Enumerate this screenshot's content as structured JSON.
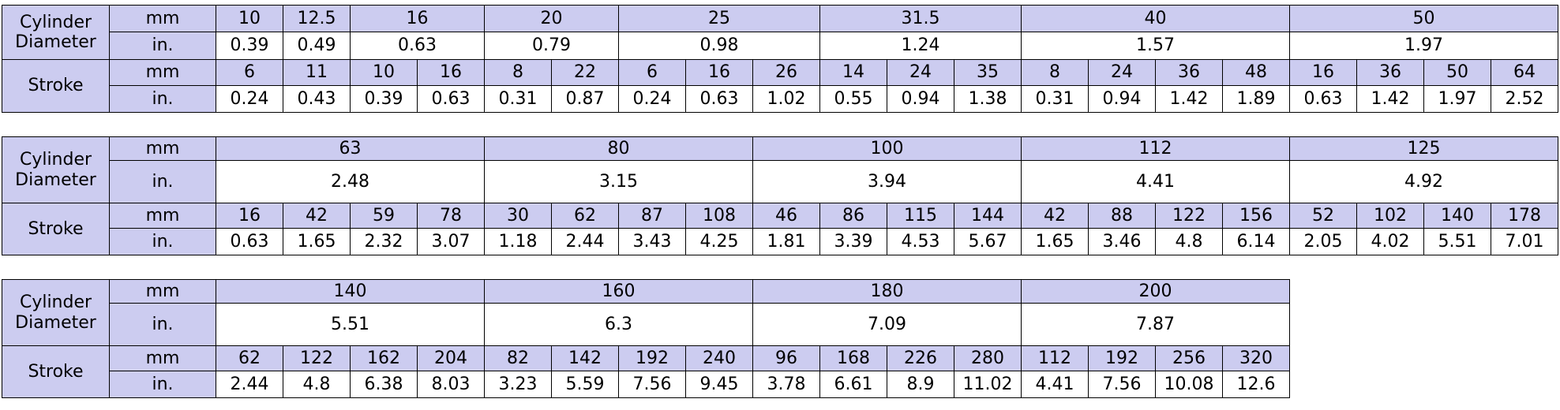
{
  "tables": [
    {
      "labels": {
        "cylinder_diameter": "Cylinder Diameter",
        "stroke": "Stroke",
        "mm_top": "mm",
        "in_top": "in.",
        "mm_bottom": "mm",
        "in_bottom": "in."
      },
      "cylinders": [
        {
          "mm": "10",
          "in": "0.39",
          "stroke_mm": [
            "6"
          ],
          "stroke_in": [
            "0.24"
          ]
        },
        {
          "mm": "12.5",
          "in": "0.49",
          "stroke_mm": [
            "11"
          ],
          "stroke_in": [
            "0.43"
          ]
        },
        {
          "mm": "16",
          "in": "0.63",
          "stroke_mm": [
            "10",
            "16"
          ],
          "stroke_in": [
            "0.39",
            "0.63"
          ]
        },
        {
          "mm": "20",
          "in": "0.79",
          "stroke_mm": [
            "8",
            "22"
          ],
          "stroke_in": [
            "0.31",
            "0.87"
          ]
        },
        {
          "mm": "25",
          "in": "0.98",
          "stroke_mm": [
            "6",
            "16",
            "26"
          ],
          "stroke_in": [
            "0.24",
            "0.63",
            "1.02"
          ]
        },
        {
          "mm": "31.5",
          "in": "1.24",
          "stroke_mm": [
            "14",
            "24",
            "35"
          ],
          "stroke_in": [
            "0.55",
            "0.94",
            "1.38"
          ]
        },
        {
          "mm": "40",
          "in": "1.57",
          "stroke_mm": [
            "8",
            "24",
            "36",
            "48"
          ],
          "stroke_in": [
            "0.31",
            "0.94",
            "1.42",
            "1.89"
          ]
        },
        {
          "mm": "50",
          "in": "1.97",
          "stroke_mm": [
            "16",
            "36",
            "50",
            "64"
          ],
          "stroke_in": [
            "0.63",
            "1.42",
            "1.97",
            "2.52"
          ]
        }
      ]
    },
    {
      "labels": {
        "cylinder_diameter": "Cylinder Diameter",
        "stroke": "Stroke",
        "mm_top": "mm",
        "in_top": "in.",
        "mm_bottom": "mm",
        "in_bottom": "in."
      },
      "cylinders": [
        {
          "mm": "63",
          "in": "2.48",
          "stroke_mm": [
            "16",
            "42",
            "59",
            "78"
          ],
          "stroke_in": [
            "0.63",
            "1.65",
            "2.32",
            "3.07"
          ]
        },
        {
          "mm": "80",
          "in": "3.15",
          "stroke_mm": [
            "30",
            "62",
            "87",
            "108"
          ],
          "stroke_in": [
            "1.18",
            "2.44",
            "3.43",
            "4.25"
          ]
        },
        {
          "mm": "100",
          "in": "3.94",
          "stroke_mm": [
            "46",
            "86",
            "115",
            "144"
          ],
          "stroke_in": [
            "1.81",
            "3.39",
            "4.53",
            "5.67"
          ]
        },
        {
          "mm": "112",
          "in": "4.41",
          "stroke_mm": [
            "42",
            "88",
            "122",
            "156"
          ],
          "stroke_in": [
            "1.65",
            "3.46",
            "4.8",
            "6.14"
          ]
        },
        {
          "mm": "125",
          "in": "4.92",
          "stroke_mm": [
            "52",
            "102",
            "140",
            "178"
          ],
          "stroke_in": [
            "2.05",
            "4.02",
            "5.51",
            "7.01"
          ]
        }
      ]
    },
    {
      "labels": {
        "cylinder_diameter": "Cylinder Diameter",
        "stroke": "Stroke",
        "mm_top": "mm",
        "in_top": "in.",
        "mm_bottom": "mm",
        "in_bottom": "in."
      },
      "cylinders": [
        {
          "mm": "140",
          "in": "5.51",
          "stroke_mm": [
            "62",
            "122",
            "162",
            "204"
          ],
          "stroke_in": [
            "2.44",
            "4.8",
            "6.38",
            "8.03"
          ]
        },
        {
          "mm": "160",
          "in": "6.3",
          "stroke_mm": [
            "82",
            "142",
            "192",
            "240"
          ],
          "stroke_in": [
            "3.23",
            "5.59",
            "7.56",
            "9.45"
          ]
        },
        {
          "mm": "180",
          "in": "7.09",
          "stroke_mm": [
            "96",
            "168",
            "226",
            "280"
          ],
          "stroke_in": [
            "3.78",
            "6.61",
            "8.9",
            "11.02"
          ]
        },
        {
          "mm": "200",
          "in": "7.87",
          "stroke_mm": [
            "112",
            "192",
            "256",
            "320"
          ],
          "stroke_in": [
            "4.41",
            "7.56",
            "10.08",
            "12.6"
          ]
        }
      ]
    }
  ]
}
